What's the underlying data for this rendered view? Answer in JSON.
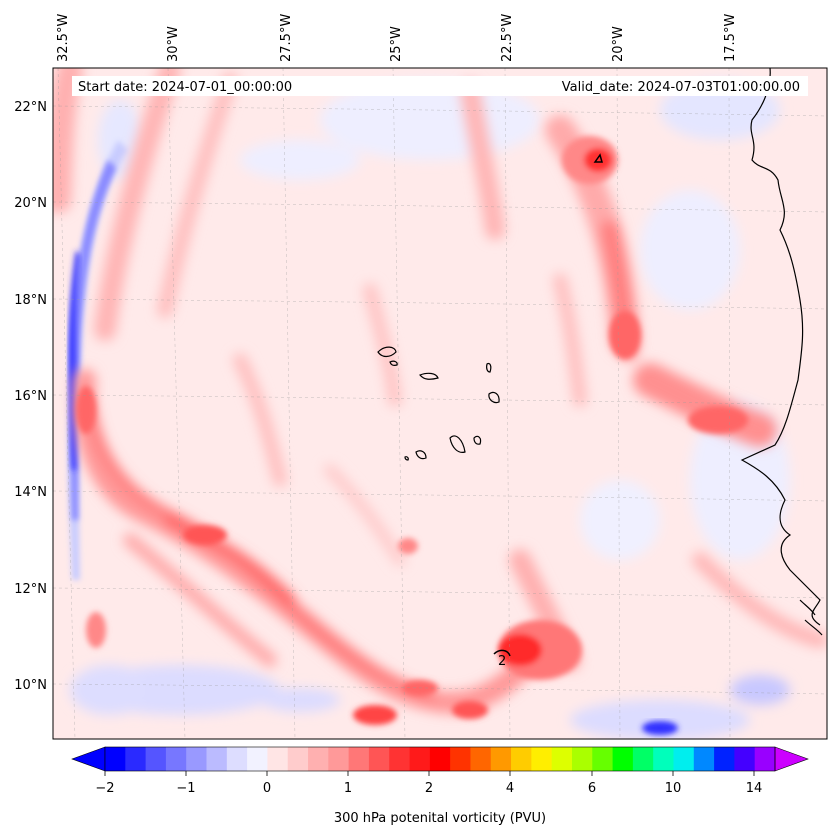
{
  "annotations": {
    "start_date": "Start date: 2024-07-01_00:00:00",
    "valid_date": "Valid_date: 2024-07-03T01:00:00.00"
  },
  "lon_labels": [
    "32.5°W",
    "30°W",
    "27.5°W",
    "25°W",
    "22.5°W",
    "20°W",
    "17.5°W"
  ],
  "lat_labels": [
    "22°N",
    "20°N",
    "18°N",
    "16°N",
    "14°N",
    "12°N",
    "10°N"
  ],
  "contour_label": "2",
  "colorbar": {
    "title": "300 hPa potenital vorticity (PVU)",
    "tick_labels": [
      "−2",
      "−1",
      "0",
      "1",
      "2",
      "4",
      "6",
      "10",
      "14"
    ],
    "colors": [
      "#0000ff",
      "#2a2aff",
      "#5555ff",
      "#7777ff",
      "#9999ff",
      "#bbbbff",
      "#ddddff",
      "#f2f2ff",
      "#ffe5e5",
      "#ffcccc",
      "#ffb0b0",
      "#ff9999",
      "#ff7777",
      "#ff5555",
      "#ff3333",
      "#ff1a1a",
      "#ff0000",
      "#ff3300",
      "#ff6600",
      "#ff9900",
      "#ffcc00",
      "#ffee00",
      "#ddff00",
      "#aaff00",
      "#66ff00",
      "#00ff00",
      "#00ff66",
      "#00ffbb",
      "#00eeee",
      "#0088ff",
      "#0022ff",
      "#4400ff",
      "#9900ff"
    ],
    "min_color": "#0000ff",
    "max_color": "#cc00ff"
  },
  "colors": {
    "background_field": "#ffeaea",
    "coast": "#000000"
  }
}
